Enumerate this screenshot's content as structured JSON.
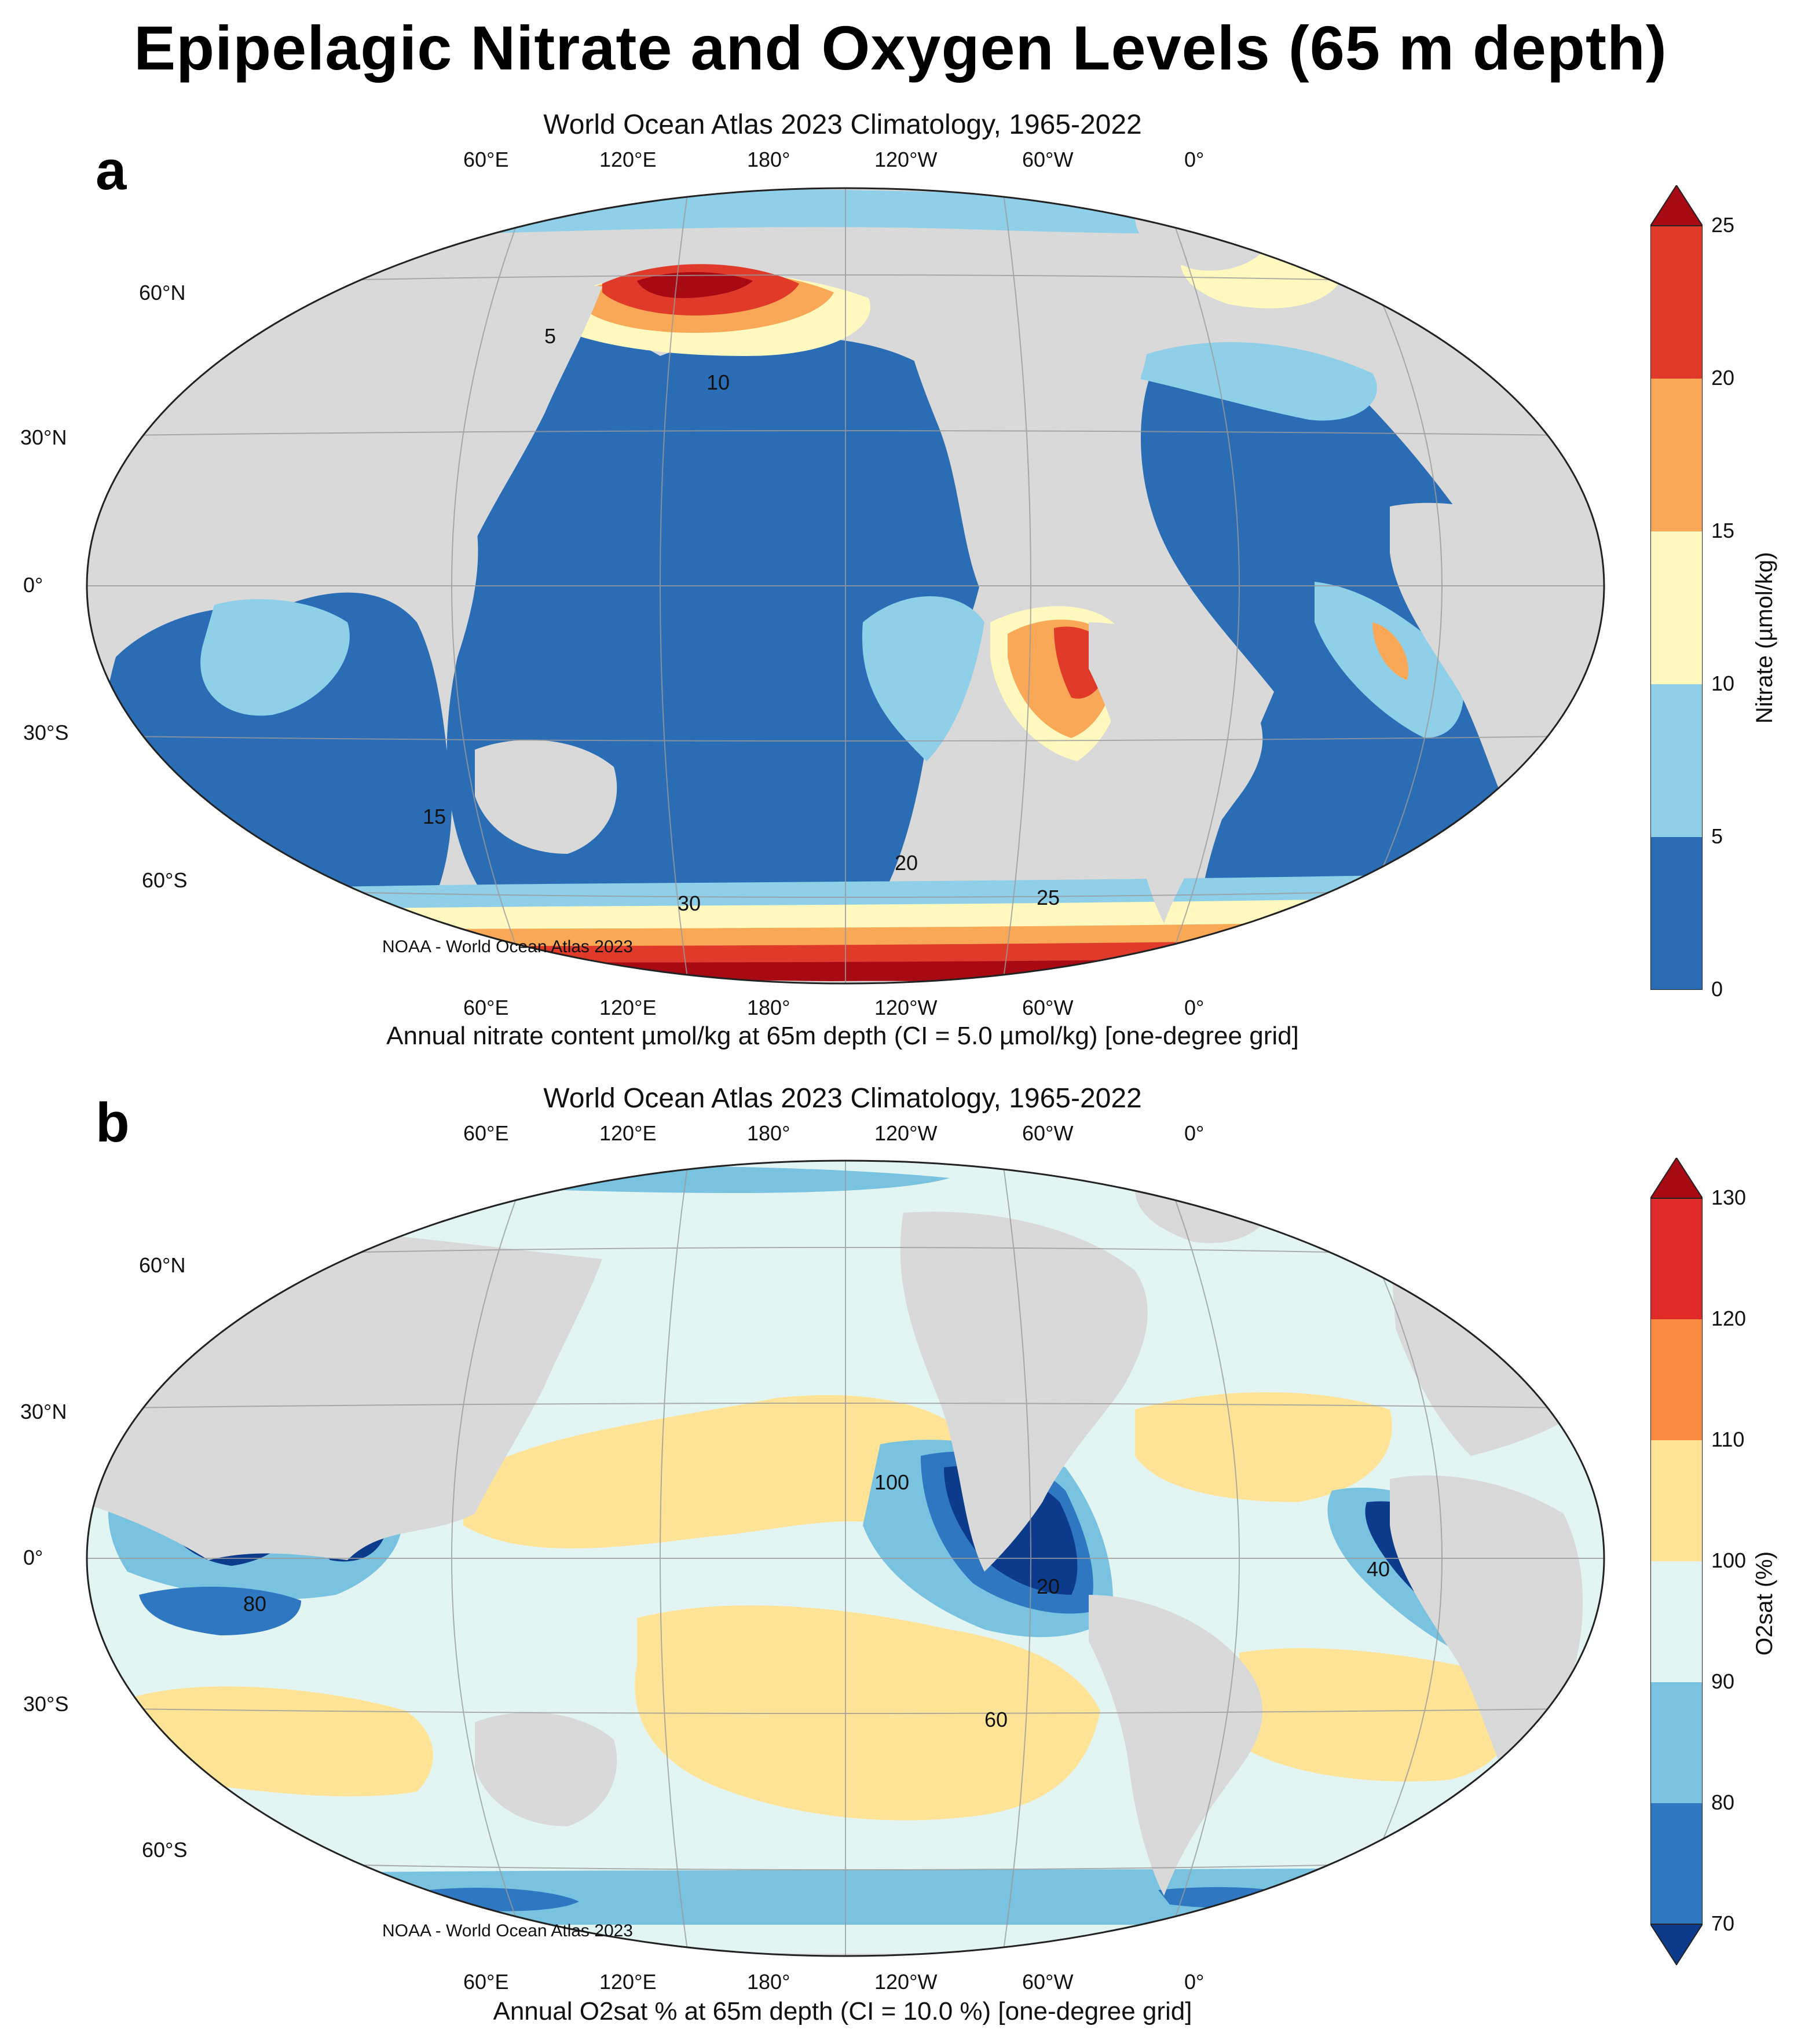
{
  "title": "Epipelagic Nitrate and Oxygen Levels (65 m depth)",
  "panels": [
    {
      "letter": "a",
      "subtitle": "World Ocean Atlas 2023 Climatology, 1965-2022",
      "caption": "Annual nitrate content µmol/kg at 65m depth (CI = 5.0 µmol/kg) [one-degree grid]",
      "credit": "NOAA - World Ocean Atlas 2023",
      "lon_ticks": [
        "60°E",
        "120°E",
        "180°",
        "120°W",
        "60°W",
        "0°"
      ],
      "lat_ticks": [
        "60°N",
        "30°N",
        "0°",
        "30°S",
        "60°S"
      ],
      "colorbar": {
        "label": "Nitrate (µmol/kg)",
        "ticks": [
          "0",
          "5",
          "10",
          "15",
          "20",
          "25"
        ],
        "colors": [
          "#2a6db5",
          "#8fd0e8",
          "#fff9c0",
          "#f9a857",
          "#df3a2a",
          "#a80a14"
        ]
      },
      "contour_labels": [
        "5",
        "10",
        "15",
        "20",
        "25",
        "30"
      ]
    },
    {
      "letter": "b",
      "subtitle": "World Ocean Atlas 2023 Climatology, 1965-2022",
      "caption": "Annual O2sat % at 65m depth (CI = 10.0 %) [one-degree grid]",
      "credit": "NOAA - World Ocean Atlas 2023",
      "lon_ticks": [
        "60°E",
        "120°E",
        "180°",
        "120°W",
        "60°W",
        "0°"
      ],
      "lat_ticks": [
        "60°N",
        "30°N",
        "0°",
        "30°S",
        "60°S"
      ],
      "colorbar": {
        "label": "O2sat (%)",
        "ticks": [
          "70",
          "80",
          "90",
          "100",
          "110",
          "120",
          "130"
        ],
        "colors": [
          "#0d3b8c",
          "#2f77c0",
          "#79c3e0",
          "#e2f5f3",
          "#ffe498",
          "#fb8b40",
          "#df2a2a",
          "#a80a14"
        ]
      },
      "contour_labels": [
        "20",
        "40",
        "60",
        "80",
        "100"
      ]
    }
  ]
}
